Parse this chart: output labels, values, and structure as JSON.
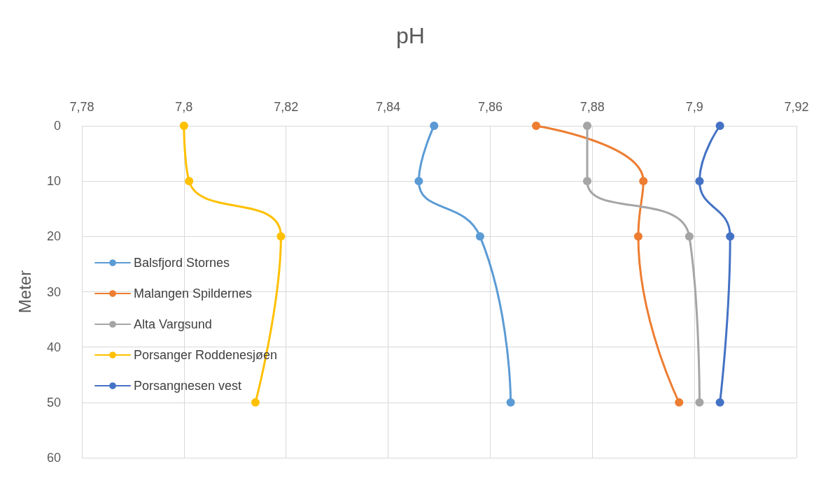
{
  "chart_data": {
    "type": "line",
    "title": "pH",
    "ylabel": "Meter",
    "xlim": [
      7.78,
      7.92
    ],
    "xticks": [
      {
        "value": 7.78,
        "label": "7,78"
      },
      {
        "value": 7.8,
        "label": "7,8"
      },
      {
        "value": 7.82,
        "label": "7,82"
      },
      {
        "value": 7.84,
        "label": "7,84"
      },
      {
        "value": 7.86,
        "label": "7,86"
      },
      {
        "value": 7.88,
        "label": "7,88"
      },
      {
        "value": 7.9,
        "label": "7,9"
      },
      {
        "value": 7.92,
        "label": "7,92"
      }
    ],
    "ylim": [
      60,
      0
    ],
    "yticks": [
      0,
      10,
      20,
      30,
      40,
      50,
      60
    ],
    "grid": true,
    "legend": "left",
    "marker": "circle",
    "line_style": "solid",
    "series": [
      {
        "name": "Balsfjord Stornes",
        "color": "#5b9bd5",
        "x": [
          7.849,
          7.846,
          7.858,
          7.864
        ],
        "values": [
          0,
          10,
          20,
          50
        ]
      },
      {
        "name": "Malangen Spildernes",
        "color": "#ed7d31",
        "x": [
          7.869,
          7.89,
          7.889,
          7.897
        ],
        "values": [
          0,
          10,
          20,
          50
        ]
      },
      {
        "name": "Alta Vargsund",
        "color": "#a5a5a5",
        "x": [
          7.879,
          7.879,
          7.899,
          7.901
        ],
        "values": [
          0,
          10,
          20,
          50
        ]
      },
      {
        "name": "Porsanger Roddenesjøen",
        "color": "#ffc000",
        "x": [
          7.8,
          7.801,
          7.819,
          7.814
        ],
        "values": [
          0,
          10,
          20,
          50
        ]
      },
      {
        "name": "Porsangnesen vest",
        "color": "#4472c4",
        "x": [
          7.905,
          7.901,
          7.907,
          7.905
        ],
        "values": [
          0,
          10,
          20,
          50
        ]
      }
    ]
  }
}
